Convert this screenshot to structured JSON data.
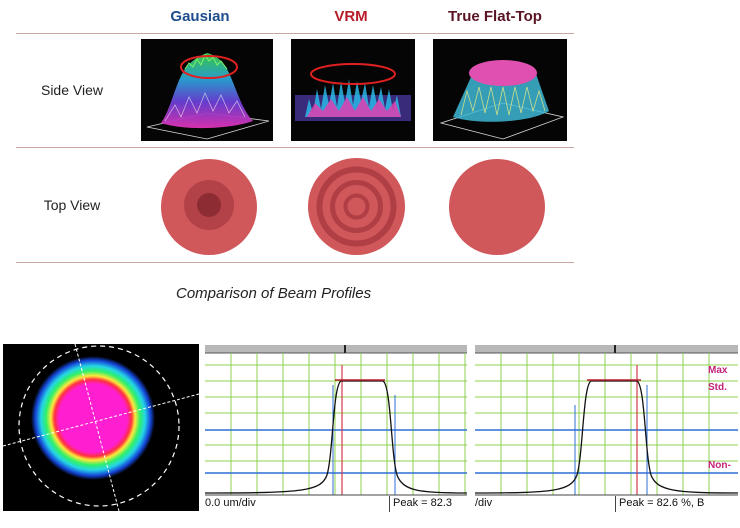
{
  "comparison": {
    "columns": [
      {
        "label": "Gausian",
        "color": "#1f4e8c"
      },
      {
        "label": "VRM",
        "color": "#b81c2a"
      },
      {
        "label": "True Flat-Top",
        "color": "#5a1424"
      }
    ],
    "rows": [
      {
        "label": "Side View"
      },
      {
        "label": "Top View"
      }
    ],
    "caption": "Comparison of Beam Profiles"
  },
  "measurements": {
    "panel_a": {
      "scale": "0.0 um/div",
      "peak": "Peak = 82.3"
    },
    "panel_b": {
      "scale": "/div",
      "peak": "Peak = 82.6 %,  B"
    },
    "legend_max": "Max",
    "legend_std": "Std.",
    "legend_non": "Non-"
  },
  "colors": {
    "disk": "#d0575a",
    "disk_mid": "#b34248",
    "disk_dark": "#8e2c33",
    "grid": "#8fd14f",
    "blue_line": "#2f6fd6",
    "profile": "#111111"
  }
}
